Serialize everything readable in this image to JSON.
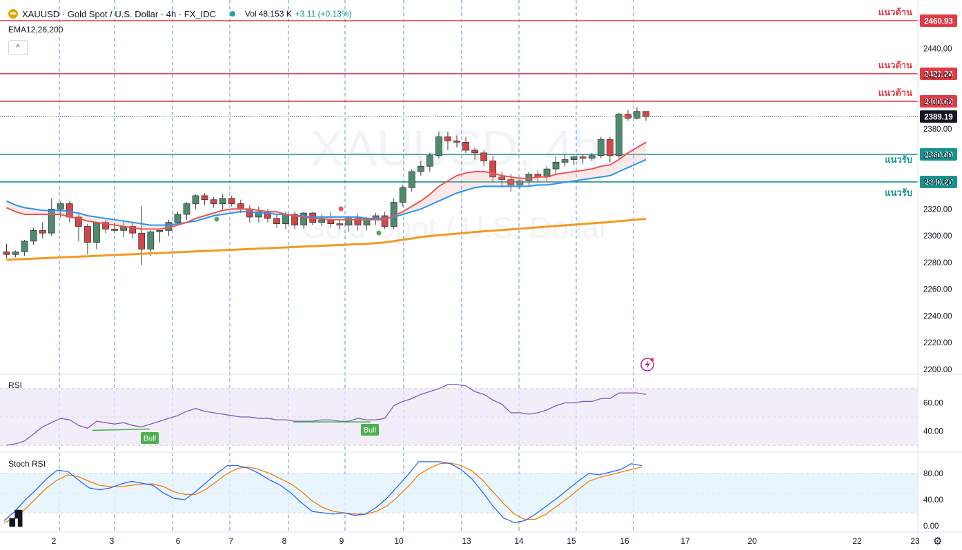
{
  "header": {
    "title": "XAUUSD · Gold Spot / U.S. Dollar · 4h · FX_IDC",
    "vol_label": "Vol",
    "vol_value": "48.153 K",
    "change": "+3.11 (+0.13%)",
    "indicator_label": "EMA12,26,200",
    "collapse_glyph": "^"
  },
  "watermark": {
    "symbol": "XAUUSD, 4h",
    "name": "Gold Spot / U.S. Dollar"
  },
  "colors": {
    "up": "#4f8a6e",
    "down": "#d64545",
    "resistance": "#e03a45",
    "support": "#14948c",
    "ema12": "#ef5350",
    "ema26": "#2196f3",
    "ema200": "#f39a1e",
    "rsi": "#7e57c2",
    "stoch_k": "#2962ff",
    "stoch_d": "#f57c00"
  },
  "price_levels": [
    {
      "label": "แนวต้าน",
      "value": "2460.93",
      "price": 2460.93,
      "kind": "resistance"
    },
    {
      "label": "แนวต้าน",
      "value": "2421.24",
      "price": 2421.24,
      "kind": "resistance"
    },
    {
      "label": "แนวต้าน",
      "value": "2400.62",
      "price": 2400.62,
      "kind": "resistance"
    },
    {
      "label": "แนวรับ",
      "value": "2360.89",
      "price": 2360.89,
      "kind": "support"
    },
    {
      "label": "แนวรับ",
      "value": "2340.27",
      "price": 2340.27,
      "kind": "support"
    }
  ],
  "last_price": {
    "value": "2389.19",
    "price": 2389.19
  },
  "price_axis_ticks": [
    "2440.00",
    "2420.00",
    "2400.00",
    "2380.00",
    "2360.00",
    "2340.00",
    "2320.00",
    "2300.00",
    "2280.00",
    "2260.00",
    "2240.00",
    "2220.00",
    "2200.00"
  ],
  "rsi": {
    "title": "RSI",
    "ticks": [
      "60.00",
      "40.00"
    ],
    "bull_labels": [
      "Bull",
      "Bull"
    ]
  },
  "stoch": {
    "title": "Stoch RSI",
    "ticks": [
      "80.00",
      "40.00",
      "0.00"
    ]
  },
  "time_axis": [
    "2",
    "3",
    "6",
    "7",
    "8",
    "9",
    "10",
    "13",
    "14",
    "15",
    "16",
    "17",
    "20",
    "22",
    "23"
  ],
  "chart_data": [
    {
      "type": "candlestick",
      "title": "XAUUSD · Gold Spot / U.S. Dollar · 4h · FX_IDC",
      "ylim": [
        2195,
        2470
      ],
      "series": [
        {
          "name": "XAUUSD",
          "ohlc": [
            [
              2288,
              2294,
              2283,
              2286
            ],
            [
              2286,
              2289,
              2284,
              2288
            ],
            [
              2288,
              2297,
              2285,
              2296
            ],
            [
              2296,
              2306,
              2293,
              2304
            ],
            [
              2304,
              2310,
              2298,
              2302
            ],
            [
              2302,
              2328,
              2300,
              2320
            ],
            [
              2320,
              2326,
              2314,
              2324
            ],
            [
              2324,
              2326,
              2310,
              2314
            ],
            [
              2314,
              2316,
              2296,
              2307
            ],
            [
              2307,
              2309,
              2286,
              2295
            ],
            [
              2295,
              2310,
              2290,
              2310
            ],
            [
              2310,
              2312,
              2302,
              2305
            ],
            [
              2305,
              2310,
              2302,
              2304
            ],
            [
              2304,
              2310,
              2299,
              2307
            ],
            [
              2307,
              2310,
              2298,
              2302
            ],
            [
              2302,
              2322,
              2278,
              2290
            ],
            [
              2290,
              2304,
              2285,
              2303
            ],
            [
              2303,
              2304,
              2295,
              2304
            ],
            [
              2304,
              2312,
              2300,
              2310
            ],
            [
              2310,
              2318,
              2308,
              2316
            ],
            [
              2316,
              2325,
              2312,
              2324
            ],
            [
              2324,
              2331,
              2320,
              2330
            ],
            [
              2330,
              2332,
              2323,
              2327
            ],
            [
              2327,
              2329,
              2321,
              2324
            ],
            [
              2324,
              2331,
              2320,
              2328
            ],
            [
              2328,
              2330,
              2322,
              2324
            ],
            [
              2324,
              2327,
              2317,
              2320
            ],
            [
              2320,
              2323,
              2310,
              2314
            ],
            [
              2314,
              2322,
              2310,
              2318
            ],
            [
              2318,
              2320,
              2310,
              2313
            ],
            [
              2313,
              2316,
              2306,
              2309
            ],
            [
              2309,
              2318,
              2305,
              2316
            ],
            [
              2316,
              2318,
              2305,
              2308
            ],
            [
              2308,
              2318,
              2305,
              2317
            ],
            [
              2317,
              2318,
              2308,
              2310
            ],
            [
              2310,
              2316,
              2307,
              2312
            ],
            [
              2312,
              2318,
              2306,
              2309
            ],
            [
              2309,
              2312,
              2305,
              2308
            ],
            [
              2308,
              2315,
              2303,
              2313
            ],
            [
              2313,
              2316,
              2304,
              2308
            ],
            [
              2308,
              2314,
              2304,
              2313
            ],
            [
              2313,
              2317,
              2308,
              2315
            ],
            [
              2315,
              2318,
              2305,
              2307
            ],
            [
              2307,
              2328,
              2305,
              2325
            ],
            [
              2325,
              2338,
              2322,
              2336
            ],
            [
              2336,
              2350,
              2333,
              2348
            ],
            [
              2348,
              2356,
              2345,
              2352
            ],
            [
              2352,
              2362,
              2348,
              2360
            ],
            [
              2360,
              2378,
              2358,
              2374
            ],
            [
              2374,
              2378,
              2364,
              2371
            ],
            [
              2371,
              2375,
              2366,
              2370
            ],
            [
              2370,
              2374,
              2362,
              2364
            ],
            [
              2364,
              2366,
              2357,
              2362
            ],
            [
              2362,
              2364,
              2352,
              2356
            ],
            [
              2356,
              2360,
              2340,
              2344
            ],
            [
              2344,
              2348,
              2336,
              2342
            ],
            [
              2342,
              2346,
              2333,
              2338
            ],
            [
              2338,
              2344,
              2335,
              2341
            ],
            [
              2341,
              2348,
              2337,
              2346
            ],
            [
              2346,
              2349,
              2340,
              2344
            ],
            [
              2344,
              2352,
              2341,
              2350
            ],
            [
              2350,
              2359,
              2346,
              2355
            ],
            [
              2355,
              2361,
              2352,
              2357
            ],
            [
              2357,
              2360,
              2353,
              2359
            ],
            [
              2359,
              2361,
              2354,
              2358
            ],
            [
              2358,
              2362,
              2356,
              2360
            ],
            [
              2360,
              2374,
              2358,
              2372
            ],
            [
              2372,
              2374,
              2355,
              2360
            ],
            [
              2360,
              2392,
              2358,
              2391
            ],
            [
              2391,
              2394,
              2386,
              2388
            ],
            [
              2388,
              2396,
              2387,
              2393
            ],
            [
              2393,
              2393,
              2386,
              2389.19
            ]
          ]
        },
        {
          "name": "EMA12",
          "values": [
            2321,
            2318,
            2316,
            2316,
            2316,
            2316,
            2316,
            2314,
            2313,
            2311,
            2310,
            2309,
            2308,
            2307,
            2306,
            2305,
            2305,
            2305,
            2306,
            2308,
            2310,
            2313,
            2315,
            2317,
            2319,
            2320,
            2320,
            2320,
            2319,
            2318,
            2318,
            2316,
            2315,
            2314,
            2313,
            2313,
            2312,
            2312,
            2312,
            2312,
            2312,
            2312,
            2312,
            2315,
            2318,
            2322,
            2326,
            2331,
            2337,
            2341,
            2345,
            2347,
            2348,
            2348,
            2347,
            2345,
            2344,
            2343,
            2343,
            2344,
            2344,
            2346,
            2347,
            2348,
            2349,
            2350,
            2352,
            2353,
            2357,
            2362,
            2366,
            2370
          ]
        },
        {
          "name": "EMA26",
          "values": [
            2326,
            2323,
            2321,
            2320,
            2319,
            2319,
            2319,
            2318,
            2317,
            2315,
            2314,
            2313,
            2312,
            2311,
            2310,
            2309,
            2308,
            2308,
            2308,
            2309,
            2310,
            2311,
            2313,
            2315,
            2316,
            2317,
            2318,
            2318,
            2317,
            2317,
            2316,
            2316,
            2315,
            2315,
            2314,
            2314,
            2314,
            2314,
            2314,
            2314,
            2313,
            2313,
            2313,
            2314,
            2316,
            2318,
            2320,
            2323,
            2326,
            2329,
            2332,
            2334,
            2336,
            2337,
            2337,
            2337,
            2337,
            2337,
            2337,
            2338,
            2338,
            2339,
            2340,
            2341,
            2342,
            2343,
            2344,
            2345,
            2348,
            2351,
            2354,
            2357
          ]
        },
        {
          "name": "EMA200",
          "values": [
            2282,
            2282.3,
            2282.6,
            2282.9,
            2283.2,
            2283.5,
            2283.8,
            2284.1,
            2284.4,
            2284.7,
            2285,
            2285.3,
            2285.6,
            2285.9,
            2286.2,
            2286.5,
            2286.8,
            2287.1,
            2287.4,
            2287.7,
            2288,
            2288.3,
            2288.6,
            2288.9,
            2289.2,
            2289.5,
            2289.8,
            2290.1,
            2290.4,
            2290.7,
            2291,
            2291.3,
            2291.6,
            2291.9,
            2292.2,
            2292.5,
            2292.8,
            2293.1,
            2293.4,
            2293.7,
            2294,
            2294.5,
            2295,
            2296,
            2297,
            2298,
            2299,
            2299.8,
            2300.4,
            2301,
            2301.6,
            2302.2,
            2302.8,
            2303.3,
            2303.8,
            2304.3,
            2304.8,
            2305.3,
            2305.8,
            2306.3,
            2306.8,
            2307.3,
            2307.8,
            2308.3,
            2308.8,
            2309.3,
            2309.8,
            2310.3,
            2310.9,
            2311.5,
            2312.1,
            2312.7
          ]
        }
      ]
    },
    {
      "type": "line",
      "title": "RSI",
      "ylim": [
        26,
        76
      ],
      "series": [
        {
          "name": "RSI",
          "values": [
            30,
            31,
            33,
            38,
            43,
            46,
            49,
            48,
            44,
            42,
            47,
            46,
            45,
            46,
            44,
            43,
            45,
            47,
            49,
            51,
            54,
            56,
            54,
            53,
            52,
            51,
            50,
            50,
            49,
            49,
            48,
            48,
            47,
            47,
            47,
            48,
            48,
            47,
            47,
            49,
            48,
            48,
            49,
            58,
            61,
            63,
            66,
            68,
            70,
            73,
            73,
            72,
            68,
            66,
            62,
            59,
            53,
            53,
            52,
            53,
            55,
            58,
            60,
            60,
            61,
            61,
            63,
            63,
            67,
            67,
            67,
            66
          ]
        }
      ]
    },
    {
      "type": "line",
      "title": "Stoch RSI",
      "ylim": [
        -5,
        105
      ],
      "series": [
        {
          "name": "K",
          "values": [
            8,
            22,
            40,
            55,
            72,
            85,
            83,
            70,
            58,
            55,
            58,
            64,
            68,
            65,
            62,
            50,
            42,
            40,
            52,
            66,
            80,
            92,
            92,
            88,
            80,
            70,
            62,
            50,
            35,
            22,
            20,
            18,
            20,
            16,
            18,
            28,
            42,
            60,
            78,
            98,
            98,
            98,
            95,
            86,
            72,
            52,
            30,
            12,
            5,
            8,
            18,
            30,
            42,
            55,
            68,
            80,
            78,
            82,
            86,
            95,
            92
          ]
        },
        {
          "name": "D",
          "values": [
            5,
            12,
            26,
            42,
            58,
            70,
            78,
            75,
            68,
            62,
            60,
            60,
            62,
            64,
            64,
            60,
            52,
            48,
            48,
            56,
            68,
            80,
            88,
            90,
            86,
            80,
            72,
            64,
            52,
            38,
            28,
            22,
            20,
            18,
            18,
            22,
            30,
            44,
            60,
            78,
            88,
            95,
            96,
            92,
            84,
            70,
            52,
            34,
            18,
            10,
            10,
            18,
            30,
            42,
            55,
            68,
            74,
            78,
            82,
            86,
            90
          ]
        }
      ]
    }
  ]
}
